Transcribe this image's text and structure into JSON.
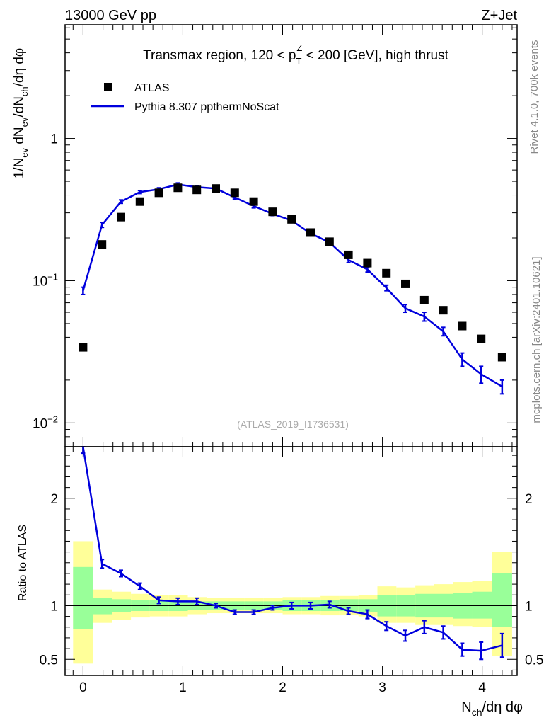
{
  "header": {
    "left": "13000 GeV pp",
    "right": "Z+Jet"
  },
  "side": {
    "rivet": "Rivet 4.1.0,  700k events",
    "mcplots": "mcplots.cern.ch [arXiv:2401.10621]"
  },
  "colors": {
    "data": "#000000",
    "mc": "#0000dd",
    "band_outer": "#ffff99",
    "band_inner": "#99ff99"
  },
  "chart_data": [
    {
      "type": "scatter",
      "panel": "main",
      "title_pre": "Transmax region, 120 < p",
      "title_sup": "Z",
      "title_sub": "T",
      "title_post": " < 200 [GeV], high thrust",
      "watermark": "(ATLAS_2019_I1736531)",
      "ylabel": "1/N_ev dN_ev/dN_ch/dη dφ",
      "yscale": "log",
      "ylim": [
        0.0068,
        6.3
      ],
      "xlim": [
        -0.18,
        4.35
      ],
      "yticks": [
        {
          "value": 1,
          "label": "1"
        },
        {
          "value": 0.1,
          "label": "10",
          "exp": "−1"
        },
        {
          "value": 0.01,
          "label": "10",
          "exp": "−2"
        }
      ],
      "legend": [
        {
          "label": "ATLAS",
          "kind": "marker"
        },
        {
          "label": "Pythia 8.307 ppthermNoScat",
          "kind": "line"
        }
      ],
      "series": [
        {
          "name": "ATLAS",
          "x": [
            0,
            0.19,
            0.38,
            0.57,
            0.76,
            0.95,
            1.14,
            1.33,
            1.52,
            1.71,
            1.9,
            2.09,
            2.28,
            2.47,
            2.66,
            2.85,
            3.04,
            3.23,
            3.42,
            3.61,
            3.8,
            3.99,
            4.2
          ],
          "y": [
            0.034,
            0.18,
            0.28,
            0.36,
            0.415,
            0.45,
            0.435,
            0.445,
            0.415,
            0.36,
            0.305,
            0.27,
            0.218,
            0.188,
            0.152,
            0.133,
            0.113,
            0.095,
            0.073,
            0.062,
            0.048,
            0.039,
            0.029
          ]
        },
        {
          "name": "Pythia 8.307 ppthermNoScat",
          "x": [
            0,
            0.19,
            0.38,
            0.57,
            0.76,
            0.95,
            1.14,
            1.33,
            1.52,
            1.71,
            1.9,
            2.09,
            2.28,
            2.47,
            2.66,
            2.85,
            3.04,
            3.23,
            3.42,
            3.61,
            3.8,
            3.99,
            4.2
          ],
          "y": [
            0.085,
            0.247,
            0.36,
            0.42,
            0.44,
            0.475,
            0.455,
            0.445,
            0.385,
            0.335,
            0.295,
            0.265,
            0.215,
            0.186,
            0.14,
            0.12,
            0.089,
            0.064,
            0.056,
            0.044,
            0.028,
            0.022,
            0.018
          ],
          "err": [
            0.005,
            0.01,
            0.01,
            0.01,
            0.01,
            0.012,
            0.012,
            0.012,
            0.01,
            0.01,
            0.008,
            0.008,
            0.007,
            0.006,
            0.006,
            0.005,
            0.004,
            0.004,
            0.004,
            0.003,
            0.003,
            0.003,
            0.002
          ]
        }
      ]
    },
    {
      "type": "line",
      "panel": "ratio",
      "ylabel": "Ratio to ATLAS",
      "xlabel_main": "N",
      "xlabel_sub": "ch",
      "xlabel_post": "/dη dφ",
      "ylim": [
        0.35,
        2.48
      ],
      "xlim": [
        -0.18,
        4.35
      ],
      "yticks": [
        0.5,
        1,
        2
      ],
      "xticks": [
        0,
        1,
        2,
        3,
        4
      ],
      "reference": 1,
      "bands": [
        {
          "x0": -0.1,
          "x1": 0.1,
          "outer": [
            0.46,
            1.6
          ],
          "inner": [
            0.78,
            1.36
          ]
        },
        {
          "x0": 0.1,
          "x1": 0.29,
          "outer": [
            0.84,
            1.15
          ],
          "inner": [
            0.92,
            1.07
          ]
        },
        {
          "x0": 0.29,
          "x1": 0.48,
          "outer": [
            0.87,
            1.13
          ],
          "inner": [
            0.94,
            1.06
          ]
        },
        {
          "x0": 0.48,
          "x1": 0.67,
          "outer": [
            0.89,
            1.11
          ],
          "inner": [
            0.95,
            1.05
          ]
        },
        {
          "x0": 0.67,
          "x1": 0.86,
          "outer": [
            0.9,
            1.1
          ],
          "inner": [
            0.95,
            1.05
          ]
        },
        {
          "x0": 0.86,
          "x1": 1.05,
          "outer": [
            0.9,
            1.1
          ],
          "inner": [
            0.95,
            1.05
          ]
        },
        {
          "x0": 1.05,
          "x1": 1.24,
          "outer": [
            0.92,
            1.08
          ],
          "inner": [
            0.96,
            1.04
          ]
        },
        {
          "x0": 1.24,
          "x1": 1.43,
          "outer": [
            0.93,
            1.07
          ],
          "inner": [
            0.96,
            1.04
          ]
        },
        {
          "x0": 1.43,
          "x1": 1.62,
          "outer": [
            0.93,
            1.07
          ],
          "inner": [
            0.96,
            1.04
          ]
        },
        {
          "x0": 1.62,
          "x1": 1.81,
          "outer": [
            0.93,
            1.07
          ],
          "inner": [
            0.96,
            1.04
          ]
        },
        {
          "x0": 1.81,
          "x1": 2.0,
          "outer": [
            0.93,
            1.07
          ],
          "inner": [
            0.96,
            1.04
          ]
        },
        {
          "x0": 2.0,
          "x1": 2.19,
          "outer": [
            0.92,
            1.08
          ],
          "inner": [
            0.95,
            1.05
          ]
        },
        {
          "x0": 2.19,
          "x1": 2.38,
          "outer": [
            0.92,
            1.08
          ],
          "inner": [
            0.95,
            1.05
          ]
        },
        {
          "x0": 2.38,
          "x1": 2.57,
          "outer": [
            0.91,
            1.09
          ],
          "inner": [
            0.95,
            1.05
          ]
        },
        {
          "x0": 2.57,
          "x1": 2.76,
          "outer": [
            0.91,
            1.09
          ],
          "inner": [
            0.95,
            1.06
          ]
        },
        {
          "x0": 2.76,
          "x1": 2.95,
          "outer": [
            0.9,
            1.1
          ],
          "inner": [
            0.94,
            1.06
          ]
        },
        {
          "x0": 2.95,
          "x1": 3.14,
          "outer": [
            0.84,
            1.18
          ],
          "inner": [
            0.9,
            1.1
          ]
        },
        {
          "x0": 3.14,
          "x1": 3.33,
          "outer": [
            0.84,
            1.17
          ],
          "inner": [
            0.9,
            1.1
          ]
        },
        {
          "x0": 3.33,
          "x1": 3.52,
          "outer": [
            0.82,
            1.19
          ],
          "inner": [
            0.89,
            1.11
          ]
        },
        {
          "x0": 3.52,
          "x1": 3.71,
          "outer": [
            0.82,
            1.2
          ],
          "inner": [
            0.89,
            1.11
          ]
        },
        {
          "x0": 3.71,
          "x1": 3.9,
          "outer": [
            0.81,
            1.22
          ],
          "inner": [
            0.88,
            1.12
          ]
        },
        {
          "x0": 3.9,
          "x1": 4.1,
          "outer": [
            0.8,
            1.23
          ],
          "inner": [
            0.88,
            1.13
          ]
        },
        {
          "x0": 4.1,
          "x1": 4.3,
          "outer": [
            0.53,
            1.5
          ],
          "inner": [
            0.8,
            1.3
          ]
        }
      ],
      "series": [
        {
          "name": "Pythia 8.307 ppthermNoScat / ATLAS",
          "x": [
            0,
            0.19,
            0.38,
            0.57,
            0.76,
            0.95,
            1.14,
            1.33,
            1.52,
            1.71,
            1.9,
            2.09,
            2.28,
            2.47,
            2.66,
            2.85,
            3.04,
            3.23,
            3.42,
            3.61,
            3.8,
            3.99,
            4.2
          ],
          "y": [
            2.5,
            1.39,
            1.3,
            1.18,
            1.05,
            1.04,
            1.04,
            1.0,
            0.94,
            0.94,
            0.98,
            1.0,
            1.0,
            1.01,
            0.95,
            0.92,
            0.81,
            0.72,
            0.8,
            0.75,
            0.59,
            0.58,
            0.63
          ],
          "err": [
            0.08,
            0.04,
            0.03,
            0.03,
            0.03,
            0.03,
            0.03,
            0.02,
            0.02,
            0.02,
            0.02,
            0.03,
            0.03,
            0.03,
            0.03,
            0.04,
            0.04,
            0.05,
            0.06,
            0.06,
            0.06,
            0.08,
            0.11
          ]
        }
      ]
    }
  ]
}
